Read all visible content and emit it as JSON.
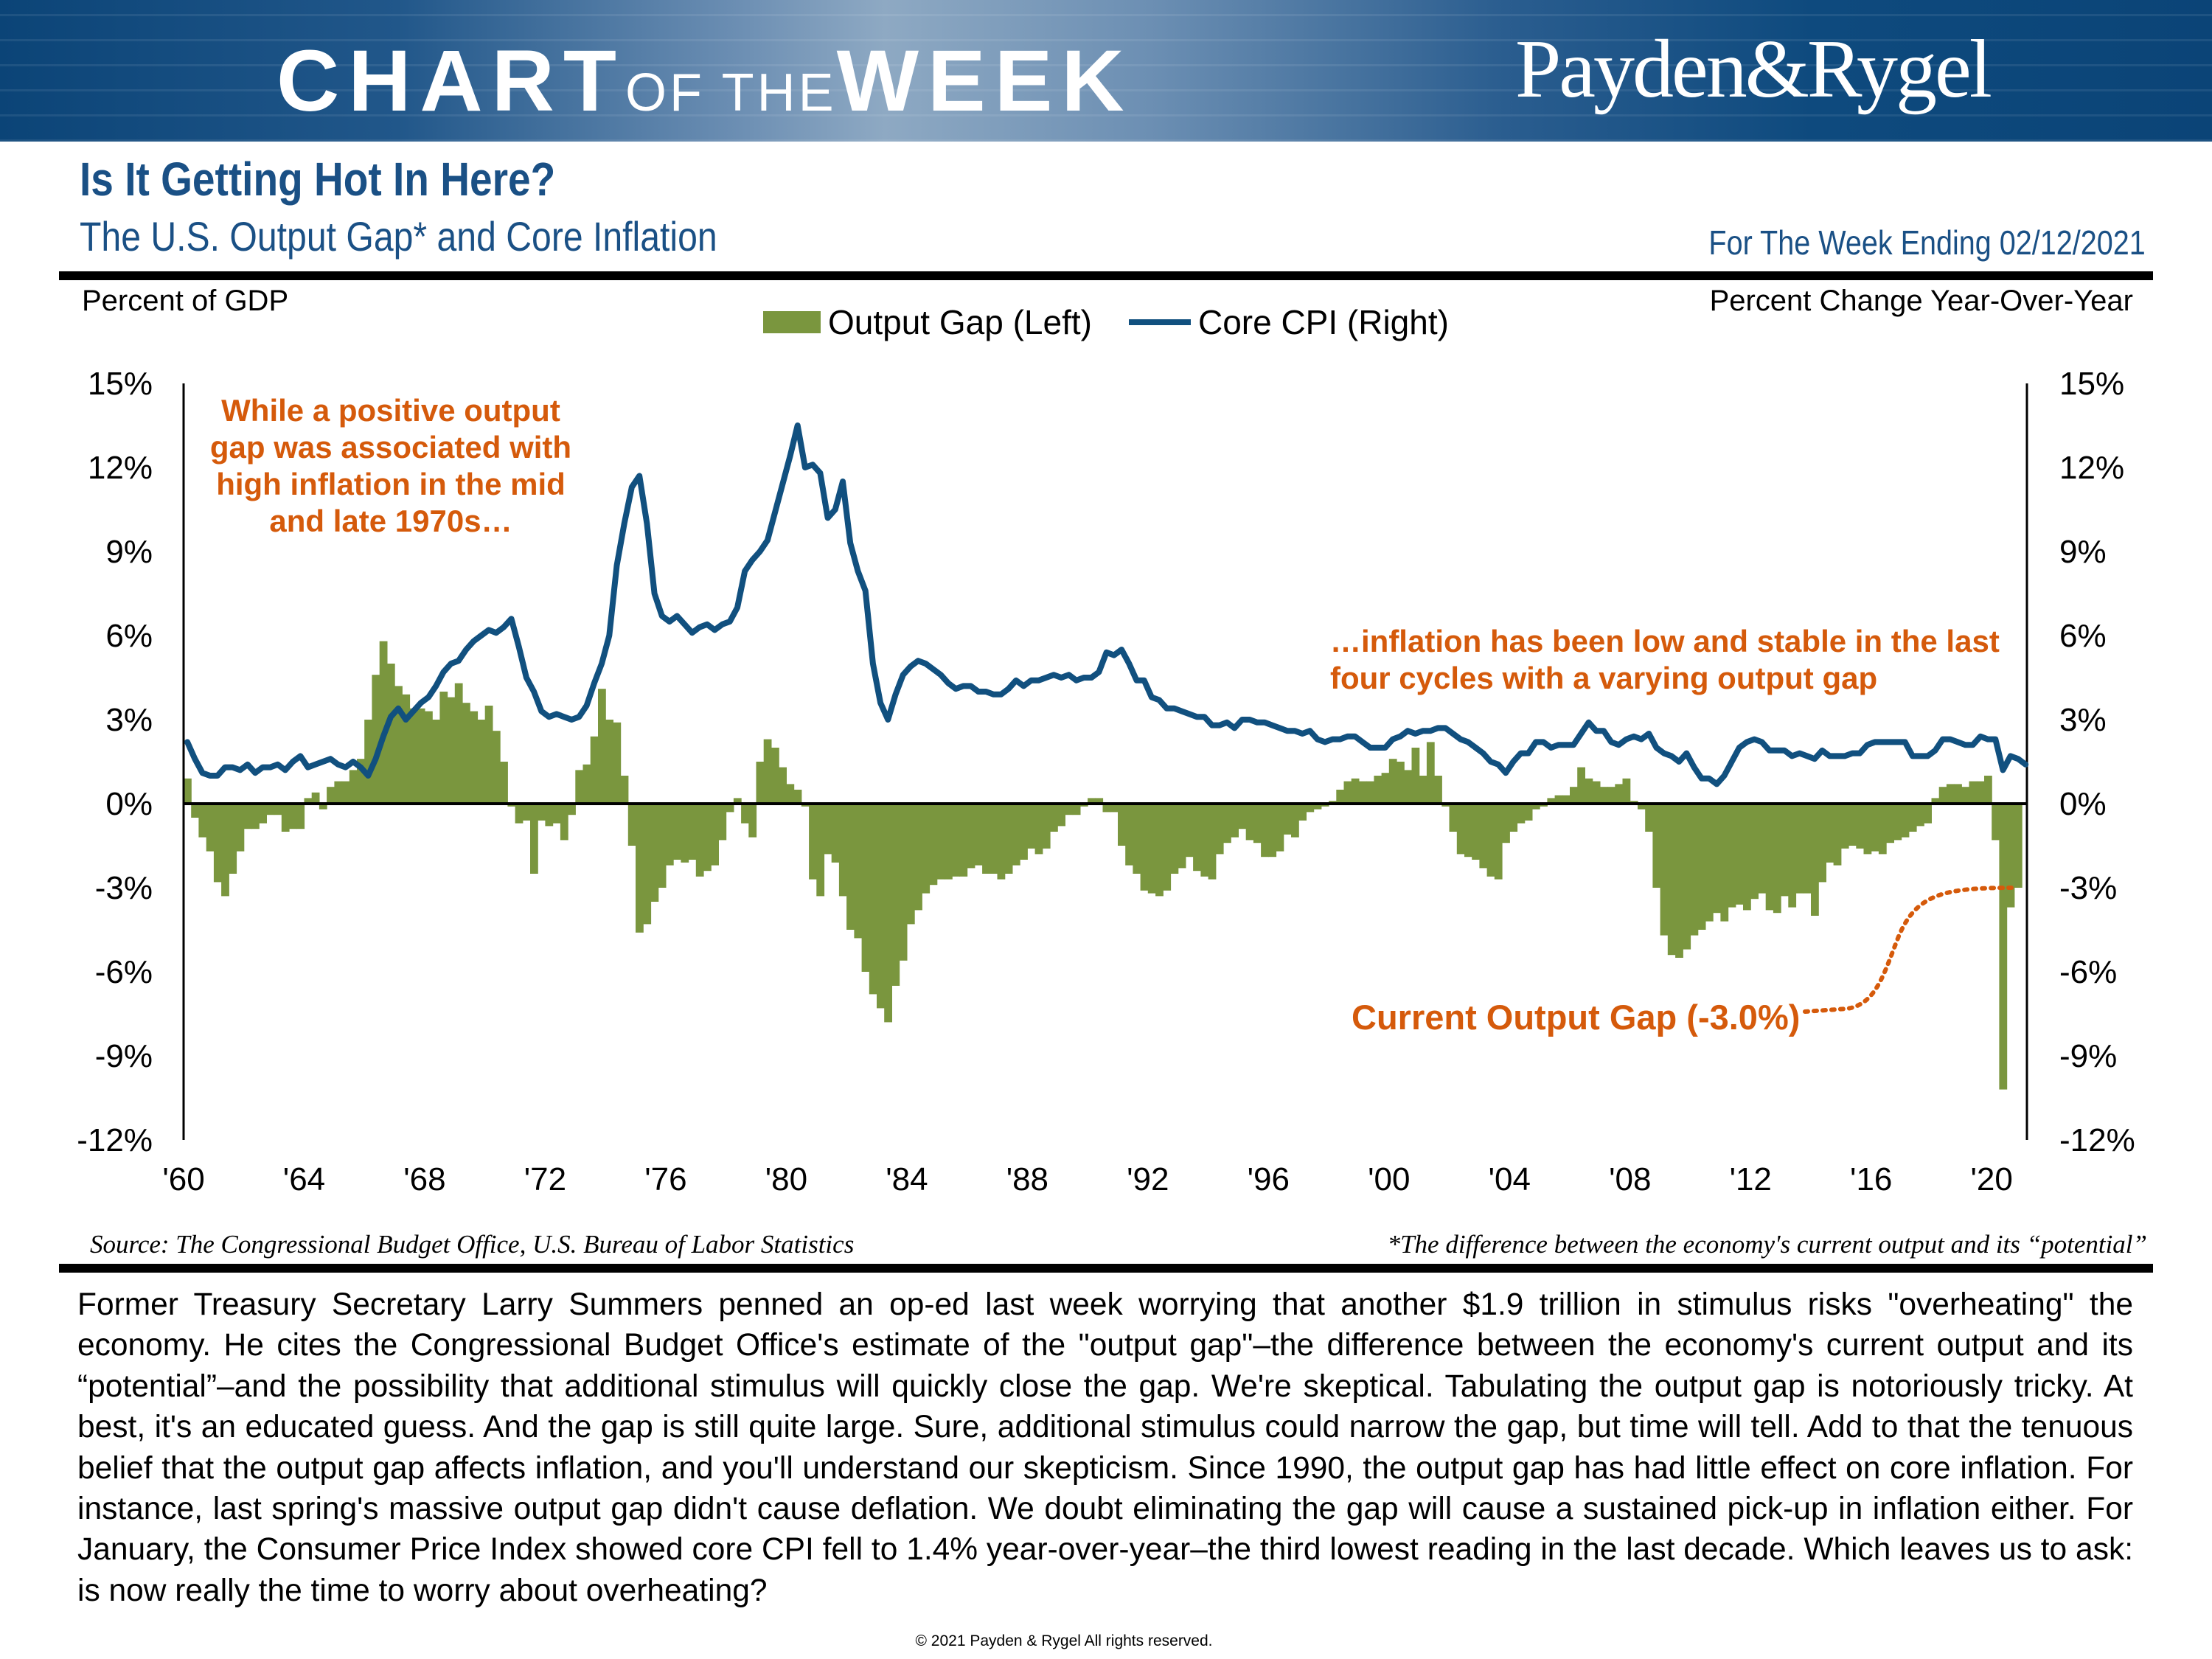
{
  "header": {
    "brand_chart": "CHART",
    "brand_ofthe": "OF THE",
    "brand_week": "WEEK",
    "company_logo": "Payden&Rygel"
  },
  "title": "Is It Getting Hot In Here?",
  "subtitle": "The U.S. Output Gap* and Core Inflation",
  "week_ending": "For The Week Ending 02/12/2021",
  "colors": {
    "output_gap": "#7a963e",
    "core_cpi": "#11507f",
    "annotation": "#d55a0b",
    "header_blue": "#0d4a7e"
  },
  "chart_data": {
    "type": "bar+line",
    "ylabel_left": "Percent of GDP",
    "ylabel_right": "Percent Change Year-Over-Year",
    "ylim": [
      -12,
      15
    ],
    "y_ticks": [
      "15%",
      "12%",
      "9%",
      "6%",
      "3%",
      "0%",
      "-3%",
      "-6%",
      "-9%",
      "-12%"
    ],
    "x_ticks": [
      "'60",
      "'64",
      "'68",
      "'72",
      "'76",
      "'80",
      "'84",
      "'88",
      "'92",
      "'96",
      "'00",
      "'04",
      "'08",
      "'12",
      "'16",
      "'20"
    ],
    "legend_position": "top-center",
    "grid": false,
    "series": [
      {
        "name": "Output Gap (Left)",
        "type": "bar",
        "axis": "left",
        "frequency": "quarterly",
        "start": "1960Q1",
        "values": [
          0.9,
          -0.5,
          -1.2,
          -1.7,
          -2.8,
          -3.3,
          -2.5,
          -1.7,
          -0.9,
          -0.9,
          -0.7,
          -0.4,
          -0.4,
          -1.0,
          -0.9,
          -0.9,
          0.2,
          0.4,
          -0.2,
          0.6,
          0.8,
          0.8,
          1.2,
          1.6,
          3.0,
          4.6,
          5.8,
          5.0,
          4.2,
          3.9,
          3.4,
          3.4,
          3.3,
          3.0,
          4.0,
          3.8,
          4.3,
          3.6,
          3.3,
          3.0,
          3.5,
          2.6,
          1.5,
          -0.1,
          -0.7,
          -0.6,
          -2.5,
          -0.6,
          -0.8,
          -0.7,
          -1.3,
          -0.4,
          1.2,
          1.4,
          2.4,
          4.1,
          3.0,
          2.9,
          1.0,
          -1.5,
          -4.6,
          -4.3,
          -3.5,
          -3.0,
          -2.2,
          -2.0,
          -2.1,
          -2.0,
          -2.6,
          -2.4,
          -2.2,
          -1.3,
          -0.3,
          0.2,
          -0.7,
          -1.2,
          1.5,
          2.3,
          2.0,
          1.3,
          0.7,
          0.5,
          -0.1,
          -2.7,
          -3.3,
          -1.8,
          -2.1,
          -3.3,
          -4.5,
          -4.8,
          -6.0,
          -6.8,
          -7.3,
          -7.8,
          -6.5,
          -5.6,
          -4.3,
          -3.8,
          -3.2,
          -2.9,
          -2.7,
          -2.7,
          -2.6,
          -2.6,
          -2.3,
          -2.2,
          -2.5,
          -2.5,
          -2.7,
          -2.5,
          -2.2,
          -2.0,
          -1.6,
          -1.8,
          -1.6,
          -1.0,
          -0.8,
          -0.4,
          -0.4,
          -0.1,
          0.2,
          0.2,
          -0.3,
          -0.3,
          -1.5,
          -2.2,
          -2.5,
          -3.1,
          -3.2,
          -3.3,
          -3.1,
          -2.5,
          -2.3,
          -1.9,
          -2.4,
          -2.6,
          -2.7,
          -1.8,
          -1.4,
          -1.2,
          -0.9,
          -1.3,
          -1.4,
          -1.9,
          -1.9,
          -1.7,
          -1.1,
          -1.2,
          -0.6,
          -0.3,
          -0.2,
          -0.1,
          0.1,
          0.5,
          0.8,
          0.9,
          0.8,
          0.8,
          1.0,
          1.1,
          1.6,
          1.5,
          1.2,
          2.0,
          1.0,
          2.2,
          1.0,
          -0.1,
          -1.0,
          -1.8,
          -1.9,
          -2.0,
          -2.3,
          -2.6,
          -2.7,
          -1.4,
          -1.0,
          -0.7,
          -0.6,
          -0.2,
          -0.1,
          0.2,
          0.3,
          0.3,
          0.6,
          1.3,
          0.9,
          0.8,
          0.6,
          0.6,
          0.7,
          0.9,
          0.1,
          -0.2,
          -1.0,
          -3.0,
          -4.7,
          -5.4,
          -5.5,
          -5.2,
          -4.7,
          -4.5,
          -4.2,
          -3.9,
          -4.2,
          -3.7,
          -3.6,
          -3.8,
          -3.4,
          -3.2,
          -3.8,
          -3.9,
          -3.3,
          -3.7,
          -3.2,
          -3.2,
          -4.0,
          -2.8,
          -2.1,
          -2.2,
          -1.6,
          -1.5,
          -1.6,
          -1.8,
          -1.7,
          -1.8,
          -1.4,
          -1.3,
          -1.2,
          -1.0,
          -0.8,
          -0.7,
          0.2,
          0.6,
          0.7,
          0.7,
          0.6,
          0.8,
          0.8,
          1.0,
          -1.3,
          -10.2,
          -3.7,
          -3.0
        ]
      },
      {
        "name": "Core CPI (Right)",
        "type": "line",
        "axis": "right",
        "frequency": "quarterly",
        "start": "1960Q1",
        "values": [
          2.2,
          1.6,
          1.1,
          1.0,
          1.0,
          1.3,
          1.3,
          1.2,
          1.4,
          1.1,
          1.3,
          1.3,
          1.4,
          1.2,
          1.5,
          1.7,
          1.3,
          1.4,
          1.5,
          1.6,
          1.4,
          1.3,
          1.5,
          1.3,
          1.0,
          1.6,
          2.4,
          3.1,
          3.4,
          3.0,
          3.3,
          3.6,
          3.8,
          4.2,
          4.7,
          5.0,
          5.1,
          5.5,
          5.8,
          6.0,
          6.2,
          6.1,
          6.3,
          6.6,
          5.6,
          4.5,
          4.0,
          3.3,
          3.1,
          3.2,
          3.1,
          3.0,
          3.1,
          3.5,
          4.3,
          5.0,
          6.0,
          8.5,
          10.0,
          11.3,
          11.7,
          10.0,
          7.5,
          6.7,
          6.5,
          6.7,
          6.4,
          6.1,
          6.3,
          6.4,
          6.2,
          6.4,
          6.5,
          7.0,
          8.3,
          8.7,
          9.0,
          9.4,
          10.4,
          11.4,
          12.4,
          13.5,
          12.0,
          12.1,
          11.8,
          10.2,
          10.5,
          11.5,
          9.3,
          8.3,
          7.6,
          5.0,
          3.6,
          3.0,
          3.9,
          4.6,
          4.9,
          5.1,
          5.0,
          4.8,
          4.6,
          4.3,
          4.1,
          4.2,
          4.2,
          4.0,
          4.0,
          3.9,
          3.9,
          4.1,
          4.4,
          4.2,
          4.4,
          4.4,
          4.5,
          4.6,
          4.5,
          4.6,
          4.4,
          4.5,
          4.5,
          4.7,
          5.4,
          5.3,
          5.5,
          5.0,
          4.4,
          4.4,
          3.8,
          3.7,
          3.4,
          3.4,
          3.3,
          3.2,
          3.1,
          3.1,
          2.8,
          2.8,
          2.9,
          2.7,
          3.0,
          3.0,
          2.9,
          2.9,
          2.8,
          2.7,
          2.6,
          2.6,
          2.5,
          2.6,
          2.3,
          2.2,
          2.3,
          2.3,
          2.4,
          2.4,
          2.2,
          2.0,
          2.0,
          2.0,
          2.3,
          2.4,
          2.6,
          2.5,
          2.6,
          2.6,
          2.7,
          2.7,
          2.5,
          2.3,
          2.2,
          2.0,
          1.8,
          1.5,
          1.4,
          1.1,
          1.5,
          1.8,
          1.8,
          2.2,
          2.2,
          2.0,
          2.1,
          2.1,
          2.1,
          2.5,
          2.9,
          2.6,
          2.6,
          2.2,
          2.1,
          2.3,
          2.4,
          2.3,
          2.5,
          2.0,
          1.8,
          1.7,
          1.5,
          1.8,
          1.3,
          0.9,
          0.9,
          0.7,
          1.0,
          1.5,
          2.0,
          2.2,
          2.3,
          2.2,
          1.9,
          1.9,
          1.9,
          1.7,
          1.8,
          1.7,
          1.6,
          1.9,
          1.7,
          1.7,
          1.7,
          1.8,
          1.8,
          2.1,
          2.2,
          2.2,
          2.2,
          2.2,
          2.2,
          1.7,
          1.7,
          1.7,
          1.9,
          2.3,
          2.3,
          2.2,
          2.1,
          2.1,
          2.4,
          2.3,
          2.3,
          1.2,
          1.7,
          1.6,
          1.4
        ]
      }
    ],
    "annotations": [
      {
        "lines": [
          "While a positive output",
          "gap was associated with",
          "high inflation in the mid",
          "and late 1970s…"
        ]
      },
      {
        "lines": [
          "…inflation has been low and stable in the last",
          "four cycles with a varying output gap"
        ]
      },
      {
        "text": "Current Output Gap (-3.0%)"
      }
    ]
  },
  "source": "Source: The Congressional Budget Office, U.S. Bureau of Labor Statistics",
  "footnote": "*The difference between the economy's current output and its “potential”",
  "body": "Former Treasury Secretary Larry Summers penned an op-ed last week worrying that another $1.9 trillion in stimulus risks \"overheating\" the economy. He cites the Congressional Budget Office's estimate of the \"output gap\"–the difference between the economy's current output and its “potential”–and the possibility that additional stimulus will quickly close the gap. We're skeptical. Tabulating the output gap is notoriously tricky. At best, it's an educated guess. And the gap is still quite large. Sure, additional stimulus could narrow the gap, but time will tell. Add to that the tenuous belief that the output gap affects inflation, and you'll understand our skepticism. Since 1990, the output gap has had little effect on core inflation. For instance, last spring's massive output gap didn't cause deflation. We doubt eliminating the gap will cause a sustained pick-up in inflation either. For January, the Consumer Price Index showed core CPI fell to 1.4% year-over-year–the third lowest reading in the last decade. Which leaves us to ask: is now really the time to worry about overheating?",
  "copyright": "© 2021 Payden & Rygel All rights reserved."
}
